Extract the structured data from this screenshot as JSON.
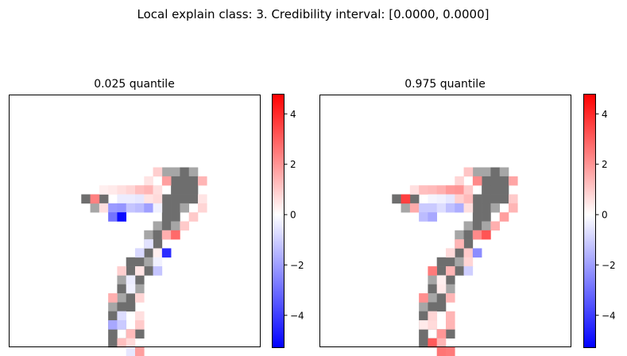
{
  "figure": {
    "suptitle": "Local explain class: 3. Credibility interval: [0.0000, 0.0000]"
  },
  "colors": {
    "neutral_gray": "#6e6e6e",
    "light_gray": "#a6a6a6",
    "colormap_low": "#0000ff",
    "colormap_mid": "#ffffff",
    "colormap_high": "#ff0000"
  },
  "chart_data": [
    {
      "type": "heatmap",
      "title": "0.025 quantile",
      "grid_size": [
        28,
        28
      ],
      "colorbar": {
        "vmin": -5.3,
        "vmax": 4.8,
        "ticks": [
          -4,
          -2,
          0,
          2,
          4
        ],
        "tick_labels": [
          "−4",
          "−2",
          "0",
          "2",
          "4"
        ]
      },
      "background_cells": [
        [
          17,
          8,
          "light"
        ],
        [
          18,
          8,
          "light"
        ],
        [
          19,
          8,
          "dark"
        ],
        [
          20,
          8,
          "light"
        ],
        [
          18,
          9,
          "dark"
        ],
        [
          19,
          9,
          "dark"
        ],
        [
          20,
          9,
          "dark"
        ],
        [
          18,
          10,
          "dark"
        ],
        [
          19,
          10,
          "dark"
        ],
        [
          20,
          10,
          "dark"
        ],
        [
          8,
          11,
          "dark"
        ],
        [
          9,
          11,
          "dark"
        ],
        [
          10,
          11,
          "dark"
        ],
        [
          17,
          11,
          "dark"
        ],
        [
          18,
          11,
          "dark"
        ],
        [
          19,
          11,
          "dark"
        ],
        [
          20,
          11,
          "dark"
        ],
        [
          9,
          12,
          "light"
        ],
        [
          17,
          12,
          "dark"
        ],
        [
          18,
          12,
          "dark"
        ],
        [
          19,
          12,
          "light"
        ],
        [
          17,
          13,
          "dark"
        ],
        [
          18,
          13,
          "dark"
        ],
        [
          16,
          14,
          "light"
        ],
        [
          17,
          14,
          "dark"
        ],
        [
          18,
          14,
          "light"
        ],
        [
          15,
          15,
          "light"
        ],
        [
          16,
          15,
          "dark"
        ],
        [
          17,
          15,
          "light"
        ],
        [
          15,
          16,
          "light"
        ],
        [
          16,
          16,
          "dark"
        ],
        [
          14,
          17,
          "light"
        ],
        [
          15,
          17,
          "dark"
        ],
        [
          13,
          18,
          "dark"
        ],
        [
          14,
          18,
          "dark"
        ],
        [
          15,
          18,
          "light"
        ],
        [
          13,
          19,
          "dark"
        ],
        [
          15,
          19,
          "dark"
        ],
        [
          12,
          20,
          "light"
        ],
        [
          14,
          20,
          "dark"
        ],
        [
          12,
          21,
          "dark"
        ],
        [
          14,
          21,
          "light"
        ],
        [
          12,
          22,
          "light"
        ],
        [
          13,
          22,
          "dark"
        ],
        [
          11,
          23,
          "light"
        ],
        [
          12,
          23,
          "dark"
        ],
        [
          13,
          23,
          "dark"
        ],
        [
          11,
          24,
          "dark"
        ],
        [
          12,
          24,
          "light"
        ],
        [
          11,
          25,
          "dark"
        ],
        [
          12,
          25,
          "dark"
        ],
        [
          11,
          26,
          "dark"
        ],
        [
          13,
          26,
          "dark"
        ],
        [
          14,
          26,
          "dark"
        ],
        [
          11,
          27,
          "dark"
        ],
        [
          12,
          27,
          "dark"
        ]
      ],
      "values": [
        [
          16,
          8,
          0.9
        ],
        [
          15,
          9,
          0.5
        ],
        [
          17,
          9,
          1.8
        ],
        [
          21,
          9,
          1.4
        ],
        [
          10,
          10,
          0.3
        ],
        [
          11,
          10,
          0.4
        ],
        [
          12,
          10,
          0.6
        ],
        [
          13,
          10,
          0.8
        ],
        [
          14,
          10,
          1.2
        ],
        [
          15,
          10,
          1.4
        ],
        [
          16,
          10,
          0.6
        ],
        [
          9,
          11,
          2.4
        ],
        [
          12,
          11,
          -0.4
        ],
        [
          13,
          11,
          -0.4
        ],
        [
          14,
          11,
          -0.5
        ],
        [
          15,
          11,
          0.5
        ],
        [
          16,
          11,
          0.7
        ],
        [
          21,
          11,
          0.5
        ],
        [
          10,
          12,
          0.6
        ],
        [
          11,
          12,
          -2.1
        ],
        [
          12,
          12,
          -2.2
        ],
        [
          13,
          12,
          -1.2
        ],
        [
          14,
          12,
          -1.4
        ],
        [
          15,
          12,
          -2.0
        ],
        [
          16,
          12,
          -0.3
        ],
        [
          21,
          12,
          0.8
        ],
        [
          11,
          13,
          -2.9
        ],
        [
          12,
          13,
          -5.1
        ],
        [
          20,
          13,
          1.0
        ],
        [
          19,
          14,
          1.0
        ],
        [
          17,
          15,
          1.5
        ],
        [
          18,
          15,
          2.8
        ],
        [
          15,
          16,
          -0.6
        ],
        [
          14,
          17,
          -0.8
        ],
        [
          16,
          17,
          0.3
        ],
        [
          17,
          17,
          -4.4
        ],
        [
          16,
          18,
          -0.3
        ],
        [
          12,
          19,
          0.9
        ],
        [
          14,
          19,
          0.5
        ],
        [
          16,
          19,
          -1.2
        ],
        [
          13,
          20,
          -0.4
        ],
        [
          13,
          21,
          -0.3
        ],
        [
          11,
          22,
          1.5
        ],
        [
          14,
          22,
          0.8
        ],
        [
          12,
          24,
          -0.7
        ],
        [
          14,
          24,
          0.6
        ],
        [
          11,
          25,
          -1.8
        ],
        [
          12,
          25,
          -1.1
        ],
        [
          14,
          25,
          1.0
        ],
        [
          13,
          26,
          1.3
        ],
        [
          12,
          27,
          1.2
        ],
        [
          13,
          27,
          0.7
        ],
        [
          13,
          28,
          -0.5
        ],
        [
          14,
          28,
          1.8
        ],
        [
          11,
          29,
          0.3
        ],
        [
          12,
          29,
          2.8
        ],
        [
          13,
          29,
          0.9
        ],
        [
          15,
          29,
          3.1
        ]
      ]
    },
    {
      "type": "heatmap",
      "title": "0.975 quantile",
      "grid_size": [
        28,
        28
      ],
      "colorbar": {
        "vmin": -5.3,
        "vmax": 4.8,
        "ticks": [
          -4,
          -2,
          0,
          2,
          4
        ],
        "tick_labels": [
          "−4",
          "−2",
          "0",
          "2",
          "4"
        ]
      },
      "background_cells": [
        [
          17,
          8,
          "light"
        ],
        [
          18,
          8,
          "light"
        ],
        [
          19,
          8,
          "dark"
        ],
        [
          20,
          8,
          "light"
        ],
        [
          18,
          9,
          "dark"
        ],
        [
          19,
          9,
          "dark"
        ],
        [
          20,
          9,
          "dark"
        ],
        [
          18,
          10,
          "dark"
        ],
        [
          19,
          10,
          "dark"
        ],
        [
          20,
          10,
          "dark"
        ],
        [
          8,
          11,
          "dark"
        ],
        [
          9,
          11,
          "dark"
        ],
        [
          10,
          11,
          "dark"
        ],
        [
          17,
          11,
          "dark"
        ],
        [
          18,
          11,
          "dark"
        ],
        [
          19,
          11,
          "dark"
        ],
        [
          20,
          11,
          "dark"
        ],
        [
          9,
          12,
          "light"
        ],
        [
          17,
          12,
          "dark"
        ],
        [
          18,
          12,
          "dark"
        ],
        [
          19,
          12,
          "light"
        ],
        [
          17,
          13,
          "dark"
        ],
        [
          18,
          13,
          "dark"
        ],
        [
          16,
          14,
          "light"
        ],
        [
          17,
          14,
          "dark"
        ],
        [
          18,
          14,
          "light"
        ],
        [
          15,
          15,
          "light"
        ],
        [
          16,
          15,
          "dark"
        ],
        [
          17,
          15,
          "light"
        ],
        [
          15,
          16,
          "light"
        ],
        [
          16,
          16,
          "dark"
        ],
        [
          14,
          17,
          "light"
        ],
        [
          15,
          17,
          "dark"
        ],
        [
          13,
          18,
          "dark"
        ],
        [
          14,
          18,
          "dark"
        ],
        [
          15,
          18,
          "light"
        ],
        [
          13,
          19,
          "dark"
        ],
        [
          15,
          19,
          "dark"
        ],
        [
          12,
          20,
          "light"
        ],
        [
          14,
          20,
          "dark"
        ],
        [
          12,
          21,
          "dark"
        ],
        [
          14,
          21,
          "light"
        ],
        [
          12,
          22,
          "light"
        ],
        [
          13,
          22,
          "dark"
        ],
        [
          11,
          23,
          "light"
        ],
        [
          12,
          23,
          "dark"
        ],
        [
          13,
          23,
          "dark"
        ],
        [
          11,
          24,
          "dark"
        ],
        [
          12,
          24,
          "light"
        ],
        [
          11,
          25,
          "dark"
        ],
        [
          12,
          25,
          "dark"
        ],
        [
          11,
          26,
          "dark"
        ],
        [
          13,
          26,
          "dark"
        ],
        [
          14,
          26,
          "dark"
        ],
        [
          11,
          27,
          "dark"
        ],
        [
          12,
          27,
          "dark"
        ]
      ],
      "values": [
        [
          16,
          8,
          1.1
        ],
        [
          15,
          9,
          0.8
        ],
        [
          17,
          9,
          2.2
        ],
        [
          21,
          9,
          1.7
        ],
        [
          10,
          10,
          0.6
        ],
        [
          11,
          10,
          1.2
        ],
        [
          12,
          10,
          1.3
        ],
        [
          13,
          10,
          1.5
        ],
        [
          14,
          10,
          1.9
        ],
        [
          15,
          10,
          2.0
        ],
        [
          16,
          10,
          1.0
        ],
        [
          9,
          11,
          3.6
        ],
        [
          12,
          11,
          -0.2
        ],
        [
          13,
          11,
          -0.3
        ],
        [
          14,
          11,
          -0.5
        ],
        [
          15,
          11,
          0.9
        ],
        [
          16,
          11,
          1.3
        ],
        [
          21,
          11,
          1.0
        ],
        [
          10,
          12,
          1.6
        ],
        [
          11,
          12,
          -1.1
        ],
        [
          12,
          12,
          -1.1
        ],
        [
          13,
          12,
          -0.7
        ],
        [
          14,
          12,
          -1.3
        ],
        [
          15,
          12,
          -1.7
        ],
        [
          16,
          12,
          0.6
        ],
        [
          21,
          12,
          1.4
        ],
        [
          11,
          13,
          -1.4
        ],
        [
          12,
          13,
          -1.8
        ],
        [
          20,
          13,
          1.8
        ],
        [
          19,
          14,
          1.5
        ],
        [
          17,
          15,
          2.2
        ],
        [
          18,
          15,
          3.2
        ],
        [
          15,
          16,
          1.4
        ],
        [
          14,
          17,
          0.7
        ],
        [
          16,
          17,
          1.0
        ],
        [
          17,
          17,
          -2.4
        ],
        [
          16,
          18,
          0.8
        ],
        [
          12,
          19,
          2.5
        ],
        [
          14,
          19,
          1.4
        ],
        [
          16,
          19,
          -1.0
        ],
        [
          13,
          20,
          0.3
        ],
        [
          13,
          21,
          0.4
        ],
        [
          11,
          22,
          2.1
        ],
        [
          14,
          22,
          1.4
        ],
        [
          12,
          24,
          0.8
        ],
        [
          14,
          24,
          1.4
        ],
        [
          11,
          25,
          0.4
        ],
        [
          12,
          25,
          0.7
        ],
        [
          14,
          25,
          1.4
        ],
        [
          13,
          26,
          2.0
        ],
        [
          12,
          27,
          3.1
        ],
        [
          13,
          27,
          1.4
        ],
        [
          13,
          28,
          2.6
        ],
        [
          14,
          28,
          2.5
        ],
        [
          11,
          29,
          0.7
        ],
        [
          12,
          29,
          4.1
        ],
        [
          13,
          29,
          1.7
        ],
        [
          15,
          29,
          4.6
        ]
      ]
    }
  ]
}
